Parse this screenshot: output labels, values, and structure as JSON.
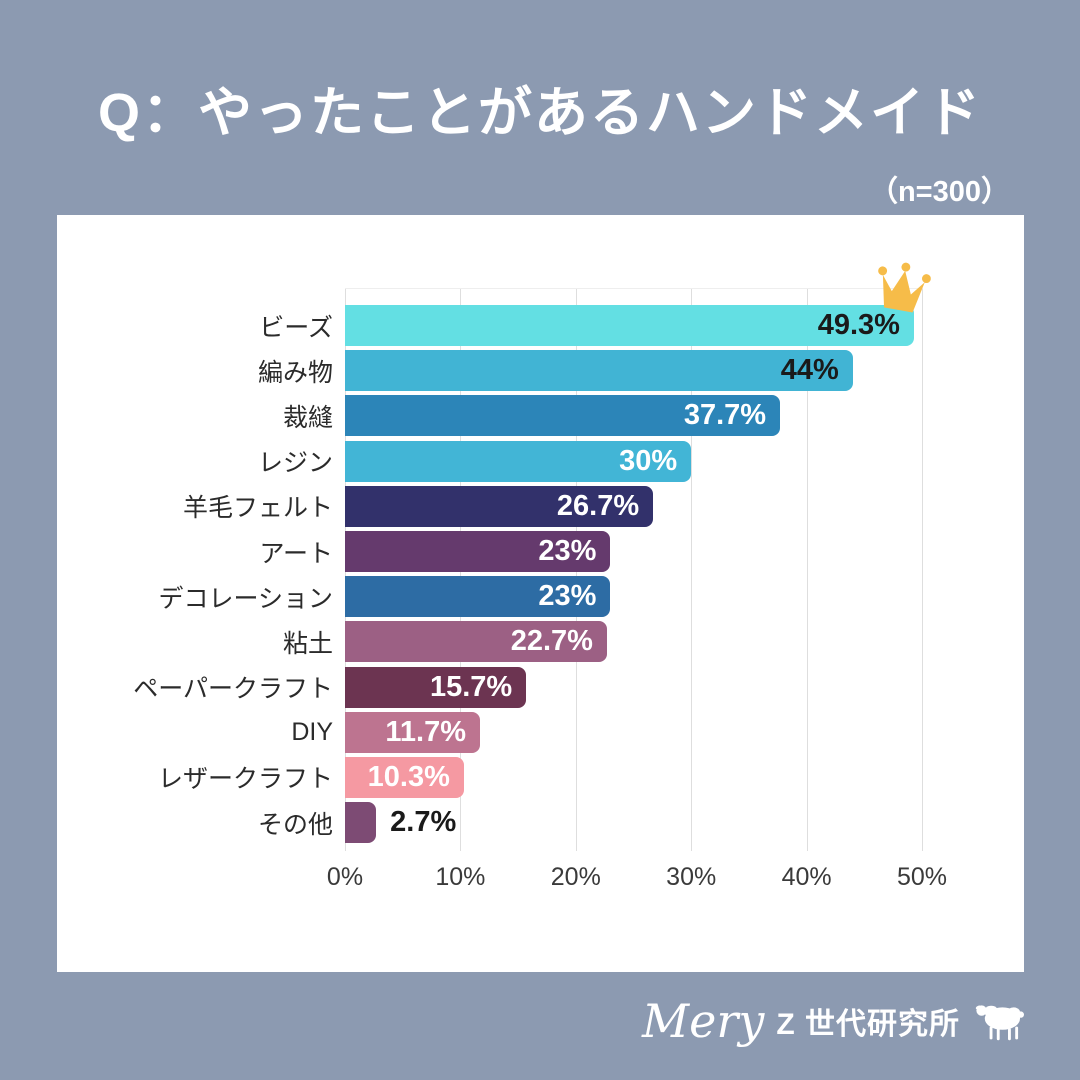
{
  "page": {
    "background_color": "#8C9AB1",
    "title": "Q：やったことがあるハンドメイド",
    "sample_size": "（n=300）"
  },
  "footer": {
    "brand_script": "Mery",
    "brand_text": "Z 世代研究所",
    "sheep_icon": "sheep-icon"
  },
  "chart_data": {
    "type": "bar",
    "orientation": "horizontal",
    "title": "Q：やったことがあるハンドメイド",
    "sample_size_note": "（n=300）",
    "xlabel": "",
    "ylabel": "",
    "xlim": [
      0,
      50
    ],
    "x_ticks": [
      "0%",
      "10%",
      "20%",
      "30%",
      "40%",
      "50%"
    ],
    "x_tick_values": [
      0,
      10,
      20,
      30,
      40,
      50
    ],
    "grid": true,
    "legend": "none",
    "categories": [
      "ビーズ",
      "編み物",
      "裁縫",
      "レジン",
      "羊毛フェルト",
      "アート",
      "デコレーション",
      "粘土",
      "ペーパークラフト",
      "DIY",
      "レザークラフト",
      "その他"
    ],
    "values": [
      49.3,
      44,
      37.7,
      30,
      26.7,
      23,
      23,
      22.7,
      15.7,
      11.7,
      10.3,
      2.7
    ],
    "value_labels": [
      "49.3%",
      "44%",
      "37.7%",
      "30%",
      "26.7%",
      "23%",
      "23%",
      "22.7%",
      "15.7%",
      "11.7%",
      "10.3%",
      "2.7%"
    ],
    "bar_colors": [
      "#63dfe3",
      "#41b4d4",
      "#2c85b8",
      "#42b5d6",
      "#32316b",
      "#653a6d",
      "#2d6ca4",
      "#9c6084",
      "#6c3451",
      "#bd7490",
      "#f599a2",
      "#7d4b74"
    ],
    "value_label_colors": [
      "#1a1a1a",
      "#1a1a1a",
      "#ffffff",
      "#ffffff",
      "#ffffff",
      "#ffffff",
      "#ffffff",
      "#ffffff",
      "#ffffff",
      "#ffffff",
      "#ffffff",
      "#1a1a1a"
    ],
    "value_label_position": [
      "inside",
      "inside",
      "inside",
      "inside",
      "inside",
      "inside",
      "inside",
      "inside",
      "inside",
      "inside",
      "inside",
      "outside"
    ],
    "annotations": [
      {
        "type": "crown-icon",
        "target_category": "ビーズ",
        "color": "#f6bc49"
      }
    ],
    "gridline_color": "#dedede",
    "plot_background": "#ffffff"
  }
}
